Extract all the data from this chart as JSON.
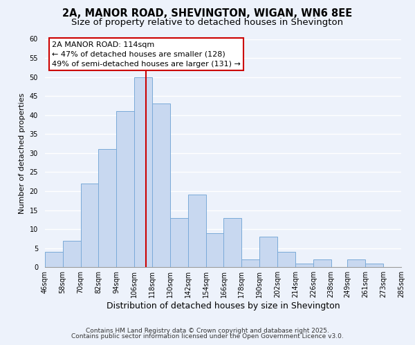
{
  "title": "2A, MANOR ROAD, SHEVINGTON, WIGAN, WN6 8EE",
  "subtitle": "Size of property relative to detached houses in Shevington",
  "xlabel": "Distribution of detached houses by size in Shevington",
  "ylabel": "Number of detached properties",
  "bin_labels": [
    "46sqm",
    "58sqm",
    "70sqm",
    "82sqm",
    "94sqm",
    "106sqm",
    "118sqm",
    "130sqm",
    "142sqm",
    "154sqm",
    "166sqm",
    "178sqm",
    "190sqm",
    "202sqm",
    "214sqm",
    "226sqm",
    "238sqm",
    "249sqm",
    "261sqm",
    "273sqm",
    "285sqm"
  ],
  "bin_edges": [
    46,
    58,
    70,
    82,
    94,
    106,
    118,
    130,
    142,
    154,
    166,
    178,
    190,
    202,
    214,
    226,
    238,
    249,
    261,
    273,
    285
  ],
  "bar_heights": [
    4,
    7,
    22,
    31,
    41,
    50,
    43,
    13,
    19,
    9,
    13,
    2,
    8,
    4,
    1,
    2,
    0,
    2,
    1,
    0
  ],
  "bar_color": "#c8d8f0",
  "bar_edgecolor": "#7aaad8",
  "vline_x": 114,
  "vline_color": "#cc0000",
  "annotation_line1": "2A MANOR ROAD: 114sqm",
  "annotation_line2": "← 47% of detached houses are smaller (128)",
  "annotation_line3": "49% of semi-detached houses are larger (131) →",
  "annotation_box_edgecolor": "#cc0000",
  "annotation_box_facecolor": "#ffffff",
  "ylim": [
    0,
    60
  ],
  "yticks": [
    0,
    5,
    10,
    15,
    20,
    25,
    30,
    35,
    40,
    45,
    50,
    55,
    60
  ],
  "footnote1": "Contains HM Land Registry data © Crown copyright and database right 2025.",
  "footnote2": "Contains public sector information licensed under the Open Government Licence v3.0.",
  "bg_color": "#edf2fb",
  "plot_bg_color": "#edf2fb",
  "grid_color": "#ffffff",
  "title_fontsize": 10.5,
  "subtitle_fontsize": 9.5,
  "xlabel_fontsize": 9,
  "ylabel_fontsize": 8,
  "tick_fontsize": 7,
  "annotation_fontsize": 8,
  "footnote_fontsize": 6.5
}
